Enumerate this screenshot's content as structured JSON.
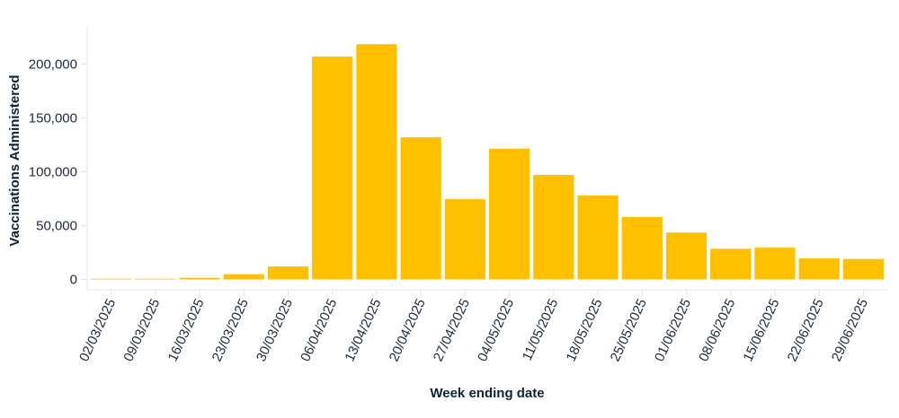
{
  "chart_data": {
    "type": "bar",
    "title": "",
    "xlabel": "Week ending date",
    "ylabel": "Vaccinations Administered",
    "categories": [
      "02/03/2025",
      "09/03/2025",
      "16/03/2025",
      "23/03/2025",
      "30/03/2025",
      "06/04/2025",
      "13/04/2025",
      "20/04/2025",
      "27/04/2025",
      "04/05/2025",
      "11/05/2025",
      "18/05/2025",
      "25/05/2025",
      "01/06/2025",
      "08/06/2025",
      "15/06/2025",
      "22/06/2025",
      "29/06/2025"
    ],
    "values": [
      300,
      600,
      1500,
      4800,
      12000,
      207000,
      218500,
      132000,
      74500,
      121500,
      97000,
      78000,
      58000,
      43500,
      28500,
      29500,
      19500,
      19000
    ],
    "yticks": [
      0,
      50000,
      100000,
      150000,
      200000
    ],
    "ytick_labels": [
      "0",
      "50,000",
      "100,000",
      "150,000",
      "200,000"
    ],
    "ylim": [
      0,
      230000
    ],
    "grid": false,
    "bar_color": "#ffc000"
  }
}
